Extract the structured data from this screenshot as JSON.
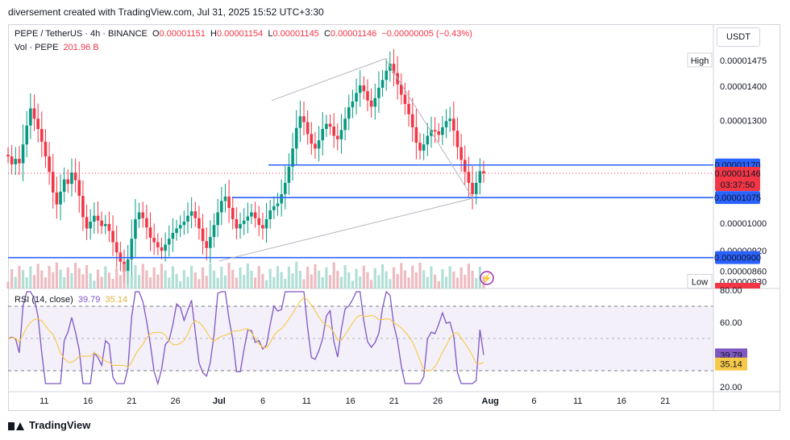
{
  "header": {
    "text": "diversement created with TradingView.com, Jul 31, 2025 15:52 UTC+3:30"
  },
  "legend": {
    "symbol": "PEPE / TetherUS · 4h · BINANCE",
    "open_label": "O",
    "open": "0.00001151",
    "high_label": "H",
    "high": "0.00001154",
    "low_label": "L",
    "low": "0.00001145",
    "close_label": "C",
    "close": "0.00001146",
    "change": "−0.00000005 (−0.43%)",
    "vol_label": "Vol · PEPE",
    "vol_value": "201.96 B"
  },
  "rsi": {
    "label": "RSI (14, close)",
    "rsi_value": "39.79",
    "ma_value": "35.14"
  },
  "currency_button": "USDT",
  "footer": {
    "brand": "TradingView"
  },
  "colors": {
    "up": "#089981",
    "down": "#f23645",
    "level_line": "#2962ff",
    "rsi_line": "#7e57c2",
    "rsi_ma": "#f7c948",
    "volume_bar": "#e9aab0"
  },
  "chart_data": {
    "type": "candlestick",
    "x_tick_labels": [
      "11",
      "16",
      "21",
      "26",
      "Jul",
      "6",
      "11",
      "16",
      "21",
      "26",
      "Aug",
      "6",
      "11",
      "16",
      "21"
    ],
    "price_axis_labels": [
      "0.00001400",
      "0.00001300",
      "0.00001000",
      "0.00000920",
      "0.00000860"
    ],
    "price_axis_tags": [
      {
        "label": "High",
        "value": "0.00001475"
      },
      {
        "label": "",
        "value": "0.00001170"
      },
      {
        "label": "",
        "value": "0.00001146",
        "countdown": "03:37:50"
      },
      {
        "label": "",
        "value": "0.00001075"
      },
      {
        "label": "",
        "value": "0.00000900"
      },
      {
        "label": "Low",
        "value": "0.00000830"
      }
    ],
    "horizontal_levels": [
      1.17e-05,
      1.075e-05,
      9e-06
    ],
    "projection_path": [
      [
        1.358e-05,
        "2025-07-07"
      ],
      [
        1.48e-05,
        "2025-07-20"
      ],
      [
        1.073e-05,
        "2025-07-30"
      ],
      [
        8.9e-06,
        "2025-08-01"
      ]
    ],
    "close_series": [
      1.195e-05,
      1.172e-05,
      1.188e-05,
      1.175e-05,
      1.23e-05,
      1.285e-05,
      1.335e-05,
      1.305e-05,
      1.275e-05,
      1.238e-05,
      1.195e-05,
      1.15e-05,
      1.09e-05,
      1.055e-05,
      1.092e-05,
      1.128e-05,
      1.115e-05,
      1.148e-05,
      1.126e-05,
      1.08e-05,
      1.018e-05,
      9.85e-06,
      1.005e-05,
      1.022e-05,
      1.008e-05,
      9.92e-06,
      9.98e-06,
      9.78e-06,
      9.45e-06,
      9.15e-06,
      8.88e-06,
      8.6e-06,
      8.95e-06,
      9.55e-06,
      1.012e-05,
      1.032e-05,
      1.015e-05,
      9.88e-06,
      9.58e-06,
      9.45e-06,
      9.3e-06,
      9.2e-06,
      9.38e-06,
      9.55e-06,
      9.72e-06,
      9.85e-06,
      9.95e-06,
      1.005e-05,
      1.022e-05,
      1.035e-05,
      1.015e-05,
      9.85e-06,
      9.48e-06,
      9.28e-06,
      9.6e-06,
      9.95e-06,
      1.032e-05,
      1.065e-05,
      1.078e-05,
      1.045e-05,
      1.012e-05,
      9.85e-06,
      9.98e-06,
      1.008e-05,
      1.02e-05,
      1.032e-05,
      1.015e-05,
      9.95e-06,
      9.85e-06,
      1.012e-05,
      1.038e-05,
      1.05e-05,
      1.058e-05,
      1.085e-05,
      1.118e-05,
      1.165e-05,
      1.218e-05,
      1.278e-05,
      1.312e-05,
      1.295e-05,
      1.26e-05,
      1.232e-05,
      1.218e-05,
      1.242e-05,
      1.275e-05,
      1.29e-05,
      1.282e-05,
      1.255e-05,
      1.245e-05,
      1.272e-05,
      1.305e-05,
      1.338e-05,
      1.355e-05,
      1.38e-05,
      1.402e-05,
      1.385e-05,
      1.358e-05,
      1.34e-05,
      1.365e-05,
      1.395e-05,
      1.418e-05,
      1.445e-05,
      1.465e-05,
      1.438e-05,
      1.405e-05,
      1.375e-05,
      1.348e-05,
      1.318e-05,
      1.28e-05,
      1.235e-05,
      1.212e-05,
      1.23e-05,
      1.255e-05,
      1.272e-05,
      1.268e-05,
      1.258e-05,
      1.28e-05,
      1.298e-05,
      1.305e-05,
      1.27e-05,
      1.222e-05,
      1.185e-05,
      1.15e-05,
      1.118e-05,
      1.085e-05,
      1.118e-05,
      1.152e-05,
      1.146e-05
    ],
    "volume_unit": "B",
    "rsi": {
      "y_axis_labels": [
        "80.00",
        "60.00",
        "20.00"
      ],
      "bands": [
        70,
        30
      ],
      "ylim": [
        17,
        81
      ],
      "rsi_last": 39.79,
      "ma_last": 35.14
    }
  }
}
